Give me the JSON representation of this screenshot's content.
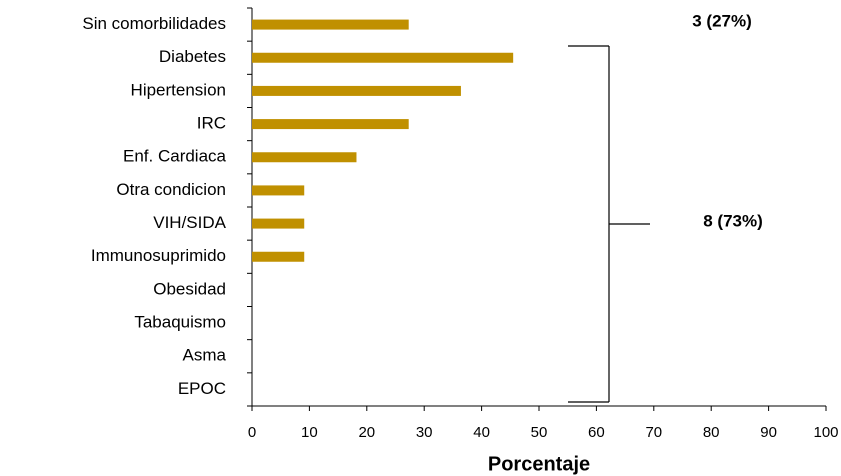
{
  "chart_data": {
    "type": "bar",
    "orientation": "horizontal",
    "categories": [
      "Sin comorbilidades",
      "Diabetes",
      "Hipertension",
      "IRC",
      "Enf. Cardiaca",
      "Otra condicion",
      "VIH/SIDA",
      "Immunosuprimido",
      "Obesidad",
      "Tabaquismo",
      "Asma",
      "EPOC"
    ],
    "values": [
      27.3,
      45.5,
      36.4,
      27.3,
      18.2,
      9.1,
      9.1,
      9.1,
      0,
      0,
      0,
      0
    ],
    "color": "#c09000",
    "xlabel": "Porcentaje",
    "xlim": [
      0,
      100
    ],
    "xticks": [
      0,
      10,
      20,
      30,
      40,
      50,
      60,
      70,
      80,
      90,
      100
    ],
    "annotations": [
      "3 (27%)",
      "8 (73%)"
    ]
  }
}
